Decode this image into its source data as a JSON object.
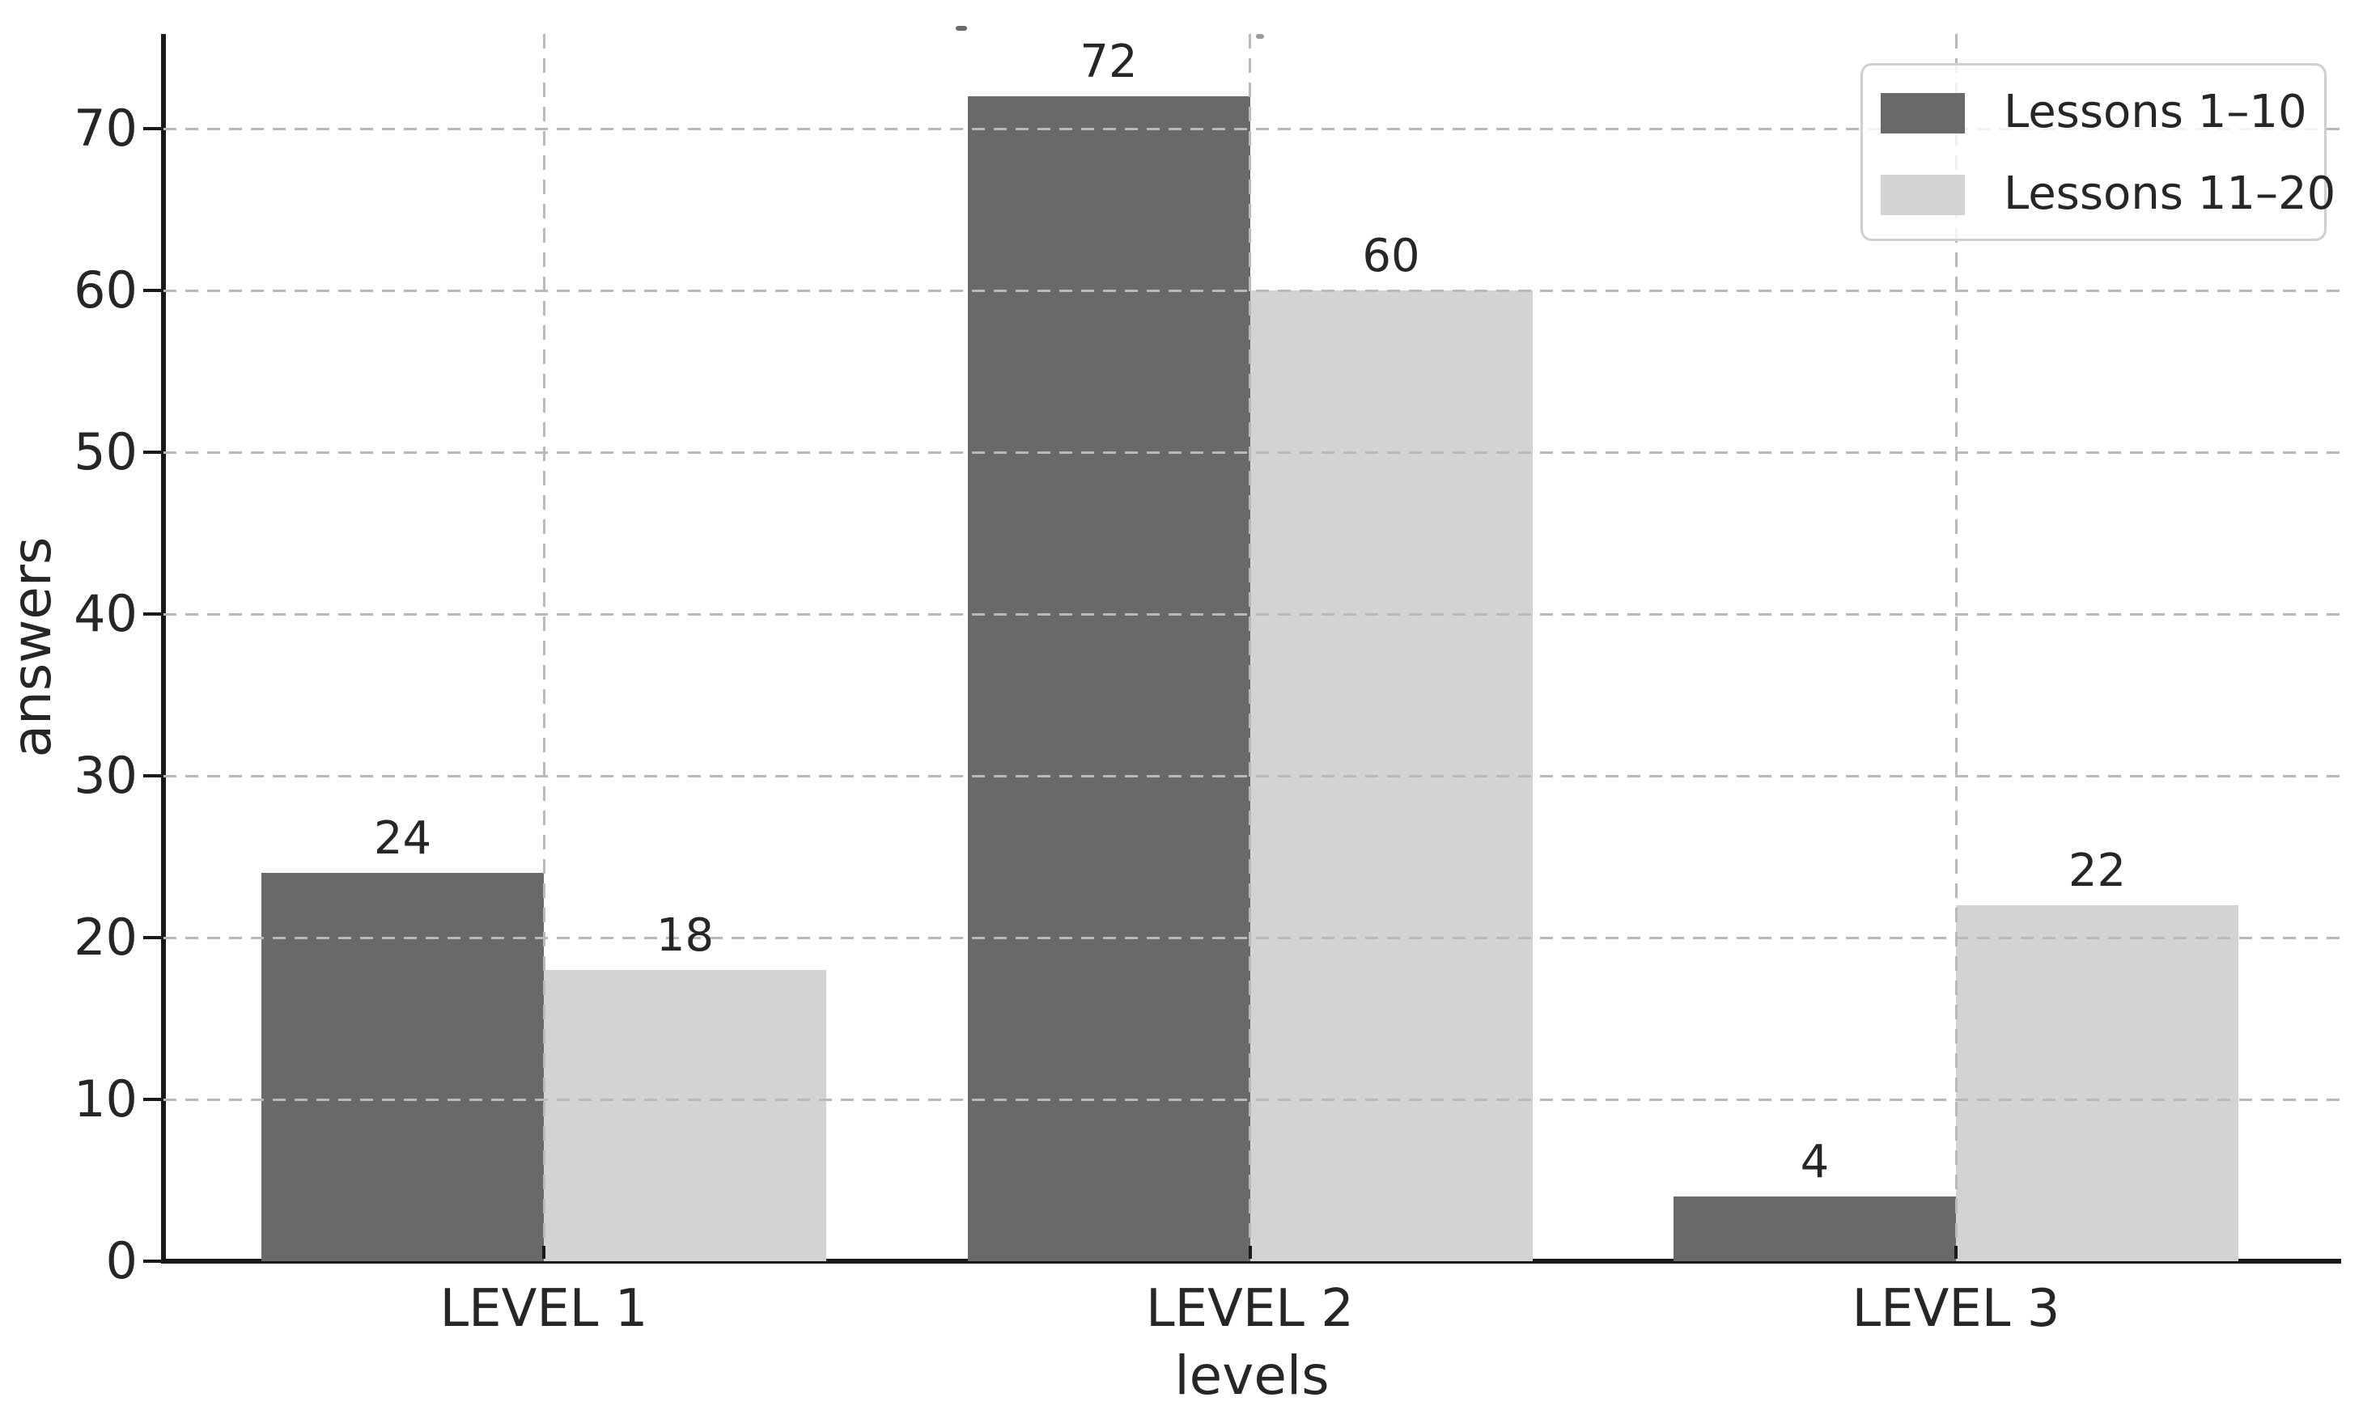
{
  "chart_data": {
    "type": "bar",
    "title": "",
    "categories": [
      "LEVEL 1",
      "LEVEL 2",
      "LEVEL 3"
    ],
    "series": [
      {
        "name": "Lessons 1–10",
        "color": "#696969",
        "values": [
          24,
          72,
          4
        ]
      },
      {
        "name": "Lessons 11–20",
        "color": "#d3d3d3",
        "values": [
          18,
          60,
          22
        ]
      }
    ],
    "value_labels": {
      "Lessons 1–10": [
        "24",
        "72",
        "4"
      ],
      "Lessons 11–20": [
        "18",
        "60",
        "22"
      ]
    },
    "xlabel": "levels",
    "ylabel": "answers",
    "yticks": [
      0,
      10,
      20,
      30,
      40,
      50,
      60,
      70
    ],
    "ylim": [
      0,
      75.85
    ],
    "xlim_categories": 3,
    "grid": "dashed horizontal lines at each y tick and dashed vertical lines at each category center, drawn above bars",
    "legend_position": "upper right"
  },
  "colors": {
    "background": "#ffffff",
    "bar_dark": "#696969",
    "bar_light": "#d3d3d3",
    "gridline": "#b9b9b9",
    "spine": "#1a1a1a",
    "text": "#262626",
    "legend_border": "#cfcfcf"
  }
}
